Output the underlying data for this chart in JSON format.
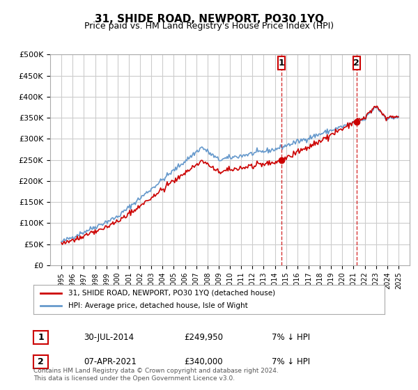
{
  "title": "31, SHIDE ROAD, NEWPORT, PO30 1YQ",
  "subtitle": "Price paid vs. HM Land Registry's House Price Index (HPI)",
  "legend_line1": "31, SHIDE ROAD, NEWPORT, PO30 1YQ (detached house)",
  "legend_line2": "HPI: Average price, detached house, Isle of Wight",
  "annotation1_date": "30-JUL-2014",
  "annotation1_price": "£249,950",
  "annotation1_hpi": "7% ↓ HPI",
  "annotation2_date": "07-APR-2021",
  "annotation2_price": "£340,000",
  "annotation2_hpi": "7% ↓ HPI",
  "footer": "Contains HM Land Registry data © Crown copyright and database right 2024.\nThis data is licensed under the Open Government Licence v3.0.",
  "hpi_color": "#6699cc",
  "price_color": "#cc0000",
  "background_color": "#ffffff",
  "grid_color": "#cccccc",
  "annotation_vline_color": "#cc0000",
  "ylim_min": 0,
  "ylim_max": 500000,
  "yticks": [
    0,
    50000,
    100000,
    150000,
    200000,
    250000,
    300000,
    350000,
    400000,
    450000,
    500000
  ],
  "sale1_year": 2014.575,
  "sale1_price": 249950,
  "sale2_year": 2021.27,
  "sale2_price": 340000
}
